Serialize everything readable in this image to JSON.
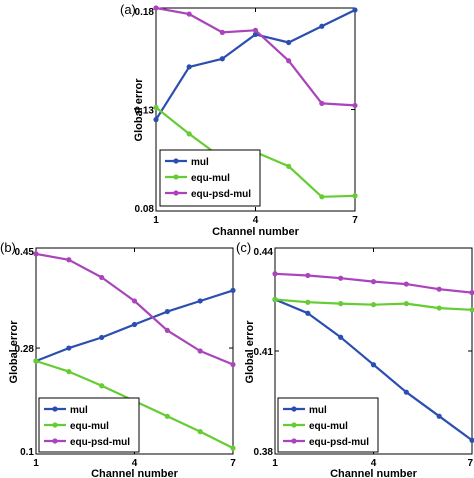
{
  "colors": {
    "mul": "#2b4fb0",
    "equ-mul": "#66cc33",
    "equ-psd-mul": "#aa44bb"
  },
  "chart_data": [
    {
      "type": "line",
      "panel_label": "(a)",
      "xlabel": "Channel number",
      "ylabel": "Global error",
      "xlim": [
        1,
        7
      ],
      "ylim": [
        0.08,
        0.18
      ],
      "xticks": [
        "1",
        "4",
        "7"
      ],
      "yticks": [
        "0.08",
        "0.13",
        "0.18"
      ],
      "legend_position": "bottom-left",
      "x": [
        1,
        2,
        3,
        4,
        5,
        6,
        7
      ],
      "series": [
        {
          "name": "mul",
          "values": [
            0.125,
            0.151,
            0.155,
            0.167,
            0.163,
            0.171,
            0.179
          ]
        },
        {
          "name": "equ-mul",
          "values": [
            0.131,
            0.118,
            0.106,
            0.109,
            0.102,
            0.087,
            0.0875
          ]
        },
        {
          "name": "equ-psd-mul",
          "values": [
            0.18,
            0.177,
            0.168,
            0.169,
            0.154,
            0.133,
            0.132
          ]
        }
      ]
    },
    {
      "type": "line",
      "panel_label": "(b)",
      "xlabel": "Channel number",
      "ylabel": "Global error",
      "xlim": [
        1,
        7
      ],
      "ylim": [
        0.1,
        0.45
      ],
      "xticks": [
        "1",
        "4",
        "7"
      ],
      "yticks": [
        "0.1",
        "0.28",
        "0.45"
      ],
      "legend_position": "bottom-left",
      "x": [
        1,
        2,
        3,
        4,
        5,
        6,
        7
      ],
      "series": [
        {
          "name": "mul",
          "values": [
            0.258,
            0.28,
            0.298,
            0.32,
            0.342,
            0.36,
            0.378
          ]
        },
        {
          "name": "equ-mul",
          "values": [
            0.258,
            0.24,
            0.216,
            0.19,
            0.164,
            0.138,
            0.11
          ]
        },
        {
          "name": "equ-psd-mul",
          "values": [
            0.44,
            0.43,
            0.4,
            0.36,
            0.31,
            0.275,
            0.252
          ]
        }
      ]
    },
    {
      "type": "line",
      "panel_label": "(c)",
      "xlabel": "Channel number",
      "ylabel": "Global error",
      "xlim": [
        1,
        7
      ],
      "ylim": [
        0.38,
        0.44
      ],
      "xticks": [
        "1",
        "4",
        "7"
      ],
      "yticks": [
        "0.38",
        "0.41",
        "0.44"
      ],
      "legend_position": "bottom-left",
      "x": [
        1,
        2,
        3,
        4,
        5,
        6,
        7
      ],
      "series": [
        {
          "name": "mul",
          "values": [
            0.425,
            0.421,
            0.414,
            0.406,
            0.398,
            0.391,
            0.384
          ]
        },
        {
          "name": "equ-mul",
          "values": [
            0.425,
            0.4242,
            0.4238,
            0.4235,
            0.4238,
            0.4225,
            0.422
          ]
        },
        {
          "name": "equ-psd-mul",
          "values": [
            0.4325,
            0.432,
            0.4312,
            0.4302,
            0.4295,
            0.428,
            0.427
          ]
        }
      ]
    }
  ]
}
